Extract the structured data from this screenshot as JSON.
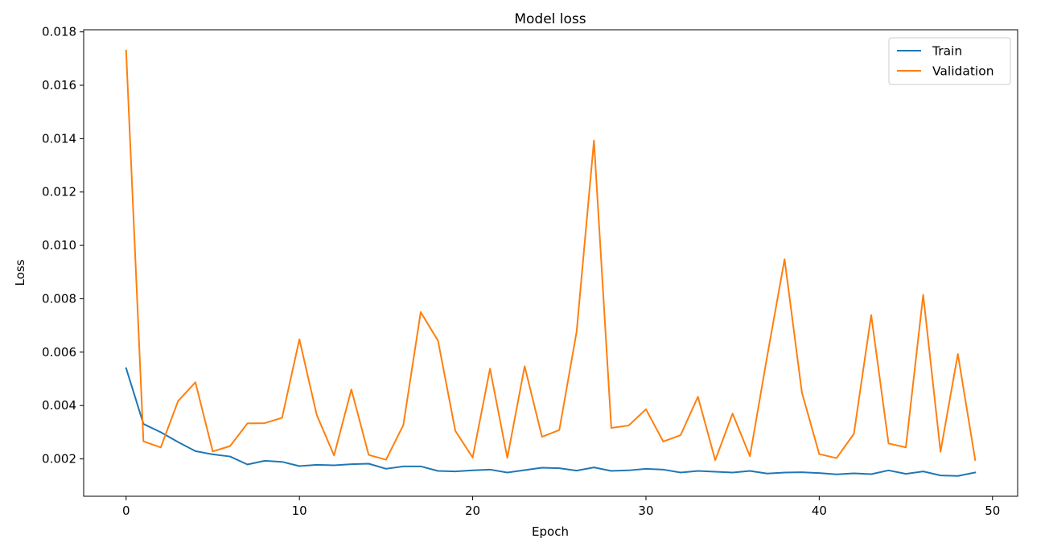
{
  "chart_data": {
    "type": "line",
    "title": "Model loss",
    "xlabel": "Epoch",
    "ylabel": "Loss",
    "xlim": [
      -2.45,
      51.45
    ],
    "ylim": [
      0.0006,
      0.01808
    ],
    "xticks": [
      0,
      10,
      20,
      30,
      40,
      50
    ],
    "xtick_labels": [
      "0",
      "10",
      "20",
      "30",
      "40",
      "50"
    ],
    "yticks": [
      0.002,
      0.004,
      0.006,
      0.008,
      0.01,
      0.012,
      0.014,
      0.016,
      0.018
    ],
    "ytick_labels": [
      "0.002",
      "0.004",
      "0.006",
      "0.008",
      "0.010",
      "0.012",
      "0.014",
      "0.016",
      "0.018"
    ],
    "grid": false,
    "legend_position": "top-right",
    "x": [
      0,
      1,
      2,
      3,
      4,
      5,
      6,
      7,
      8,
      9,
      10,
      11,
      12,
      13,
      14,
      15,
      16,
      17,
      18,
      19,
      20,
      21,
      22,
      23,
      24,
      25,
      26,
      27,
      28,
      29,
      30,
      31,
      32,
      33,
      34,
      35,
      36,
      37,
      38,
      39,
      40,
      41,
      42,
      43,
      44,
      45,
      46,
      47,
      48,
      49
    ],
    "series": [
      {
        "name": "Train",
        "color": "#1f77b4",
        "values": [
          0.0054,
          0.00331,
          0.003,
          0.00263,
          0.00229,
          0.00217,
          0.00209,
          0.00179,
          0.00193,
          0.00189,
          0.00173,
          0.00178,
          0.00176,
          0.0018,
          0.00182,
          0.00163,
          0.00172,
          0.00172,
          0.00155,
          0.00153,
          0.00157,
          0.0016,
          0.00149,
          0.00158,
          0.00167,
          0.00165,
          0.00156,
          0.00168,
          0.00155,
          0.00157,
          0.00163,
          0.0016,
          0.00149,
          0.00155,
          0.00152,
          0.00149,
          0.00155,
          0.00145,
          0.00149,
          0.0015,
          0.00147,
          0.00142,
          0.00146,
          0.00143,
          0.00157,
          0.00144,
          0.00153,
          0.00138,
          0.00136,
          0.00149
        ]
      },
      {
        "name": "Validation",
        "color": "#ff7f0e",
        "values": [
          0.0173,
          0.00266,
          0.00243,
          0.00417,
          0.00487,
          0.00228,
          0.00248,
          0.00333,
          0.00334,
          0.00354,
          0.00648,
          0.00365,
          0.00213,
          0.0046,
          0.00215,
          0.00197,
          0.00327,
          0.0075,
          0.00643,
          0.00305,
          0.00205,
          0.00538,
          0.00204,
          0.00547,
          0.00283,
          0.00308,
          0.00677,
          0.01393,
          0.00316,
          0.00325,
          0.00386,
          0.00265,
          0.00289,
          0.00433,
          0.00195,
          0.0037,
          0.0021,
          0.00586,
          0.00948,
          0.00449,
          0.00218,
          0.00203,
          0.00294,
          0.00739,
          0.00258,
          0.00243,
          0.00815,
          0.00227,
          0.00593,
          0.00196
        ]
      }
    ]
  }
}
